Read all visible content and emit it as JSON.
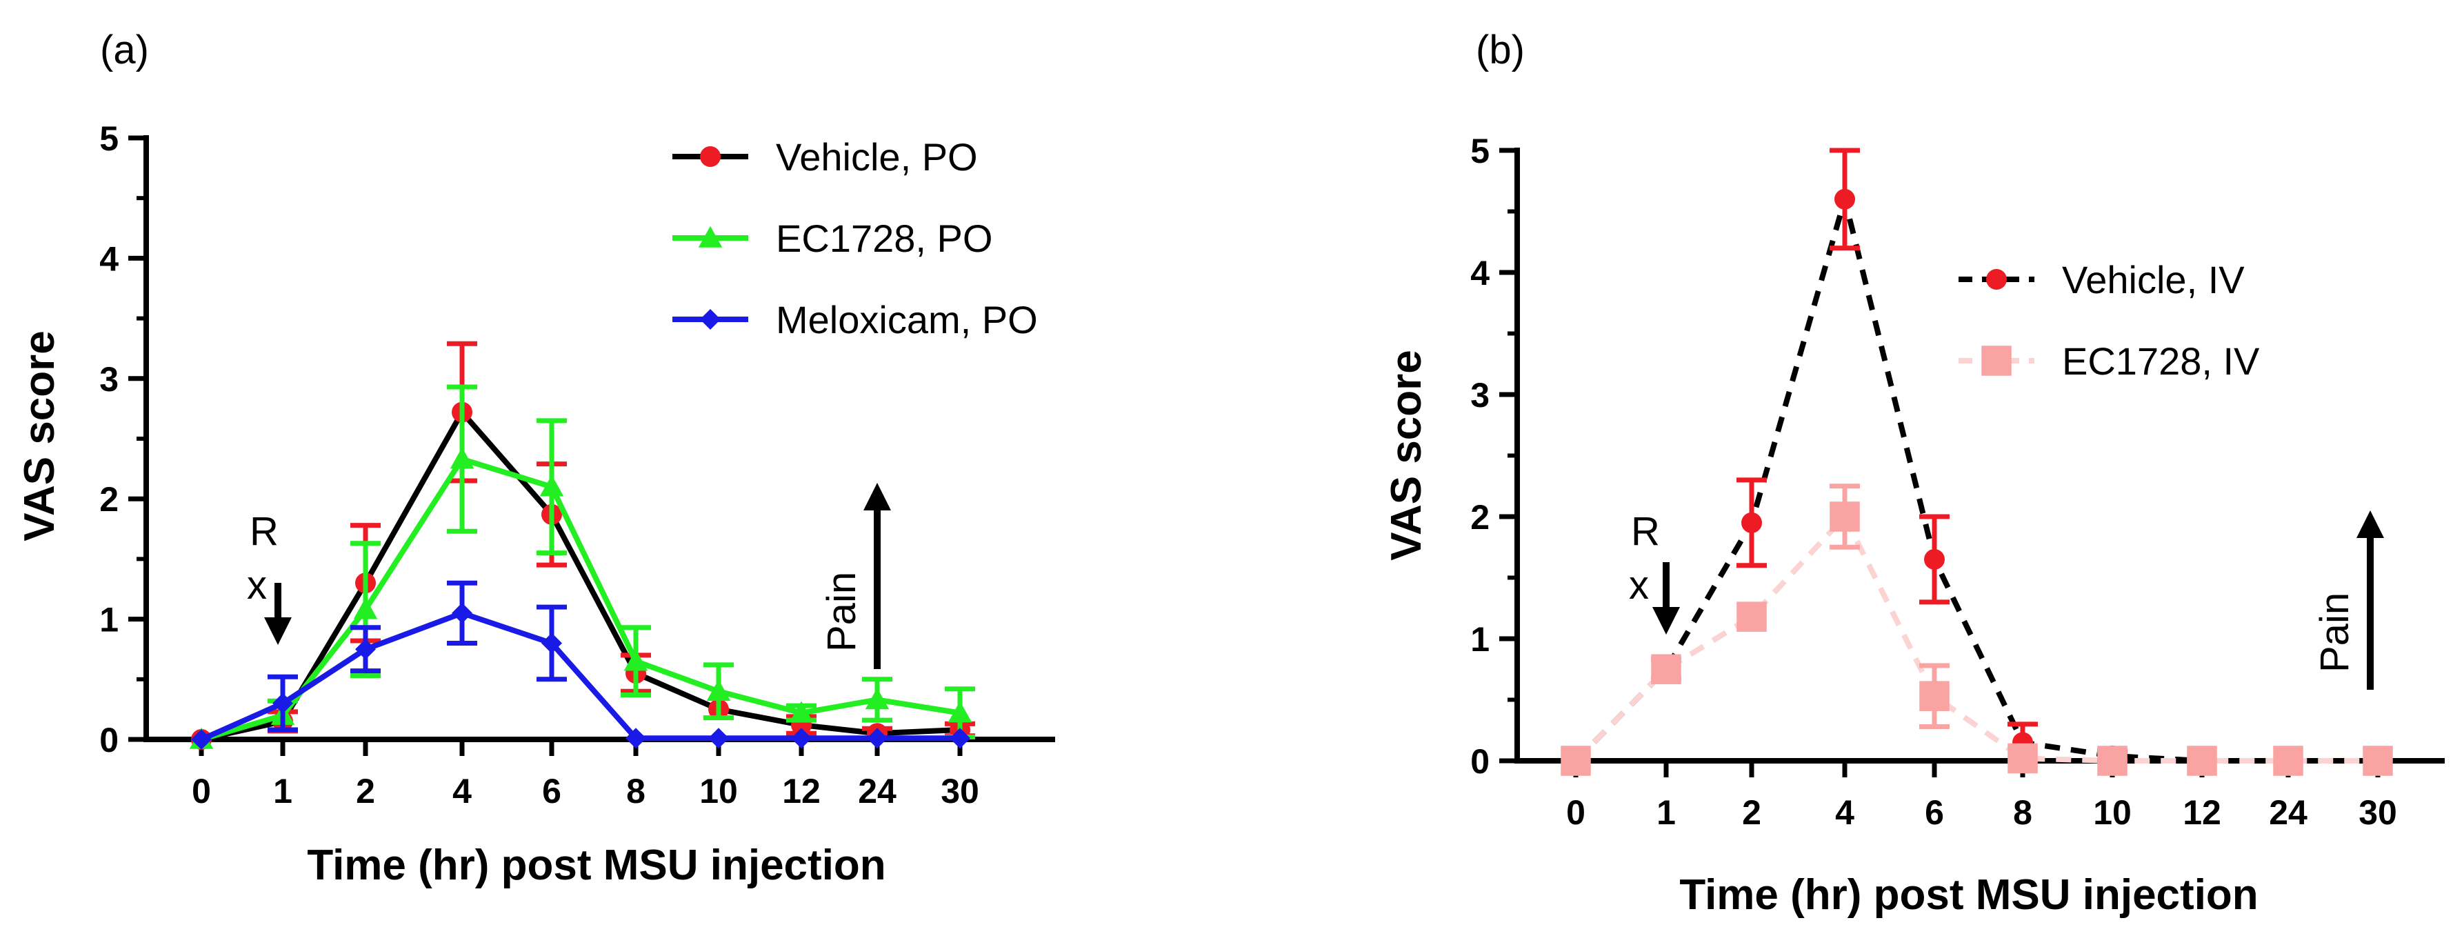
{
  "chart_data": [
    {
      "type": "line",
      "panel_label": "(a)",
      "xlabel": "Time (hr) post MSU injection",
      "ylabel": "VAS score",
      "categories": [
        "0",
        "1",
        "2",
        "4",
        "6",
        "8",
        "10",
        "12",
        "24",
        "30"
      ],
      "ylim": [
        0,
        5
      ],
      "yticks": [
        "0",
        "1",
        "2",
        "3",
        "4",
        "5"
      ],
      "legend_position": "top-right",
      "annotations": {
        "rx_top": "R",
        "rx_bottom": "x",
        "pain": "Pain"
      },
      "series": [
        {
          "name": "Vehicle, PO",
          "color": "#ed1c24",
          "line_color": "#000000",
          "line_style": "solid",
          "marker": "circle",
          "values": [
            0,
            0.15,
            1.3,
            2.72,
            1.87,
            0.55,
            0.25,
            0.12,
            0.05,
            0.08
          ],
          "errors": [
            0,
            0.08,
            0.48,
            0.57,
            0.42,
            0.15,
            0.0,
            0.07,
            0.04,
            0.05
          ]
        },
        {
          "name": "EC1728, PO",
          "color": "#22ee22",
          "line_color": "#22ee22",
          "line_style": "solid",
          "marker": "triangle",
          "values": [
            0,
            0.2,
            1.08,
            2.33,
            2.1,
            0.65,
            0.4,
            0.22,
            0.33,
            0.22
          ],
          "errors": [
            0,
            0.12,
            0.55,
            0.6,
            0.55,
            0.28,
            0.22,
            0.06,
            0.17,
            0.2
          ]
        },
        {
          "name": "Meloxicam, PO",
          "color": "#1a1ae6",
          "line_color": "#1a1ae6",
          "line_style": "solid",
          "marker": "diamond",
          "values": [
            0,
            0.3,
            0.75,
            1.05,
            0.8,
            0.01,
            0.01,
            0.01,
            0.01,
            0.01
          ],
          "errors": [
            0,
            0.22,
            0.18,
            0.25,
            0.3,
            0.0,
            0.0,
            0.0,
            0.0,
            0.0
          ]
        }
      ]
    },
    {
      "type": "line",
      "panel_label": "(b)",
      "xlabel": "Time (hr) post MSU injection",
      "ylabel": "VAS score",
      "categories": [
        "0",
        "1",
        "2",
        "4",
        "6",
        "8",
        "10",
        "12",
        "24",
        "30"
      ],
      "ylim": [
        0,
        5
      ],
      "yticks": [
        "0",
        "1",
        "2",
        "3",
        "4",
        "5"
      ],
      "legend_position": "top-right",
      "annotations": {
        "rx_top": "R",
        "rx_bottom": "x",
        "pain": "Pain"
      },
      "series": [
        {
          "name": "Vehicle, IV",
          "color": "#ed1c24",
          "line_color": "#000000",
          "line_style": "dashed",
          "marker": "circle",
          "values": [
            0,
            0.75,
            1.95,
            4.6,
            1.65,
            0.15,
            0.04,
            0.0,
            0.0,
            0.0
          ],
          "errors": [
            0,
            0.0,
            0.35,
            0.4,
            0.35,
            0.15,
            0.04,
            0.0,
            0.0,
            0.0
          ]
        },
        {
          "name": "EC1728, IV",
          "color": "#f9a3a3",
          "line_color": "#fbd3d3",
          "line_style": "dashed",
          "marker": "square",
          "values": [
            0,
            0.75,
            1.18,
            2.0,
            0.53,
            0.02,
            0.0,
            0.0,
            0.0,
            0.0
          ],
          "errors": [
            0,
            0.08,
            0.0,
            0.25,
            0.25,
            0.0,
            0.0,
            0.0,
            0.0,
            0.0
          ]
        }
      ]
    }
  ]
}
